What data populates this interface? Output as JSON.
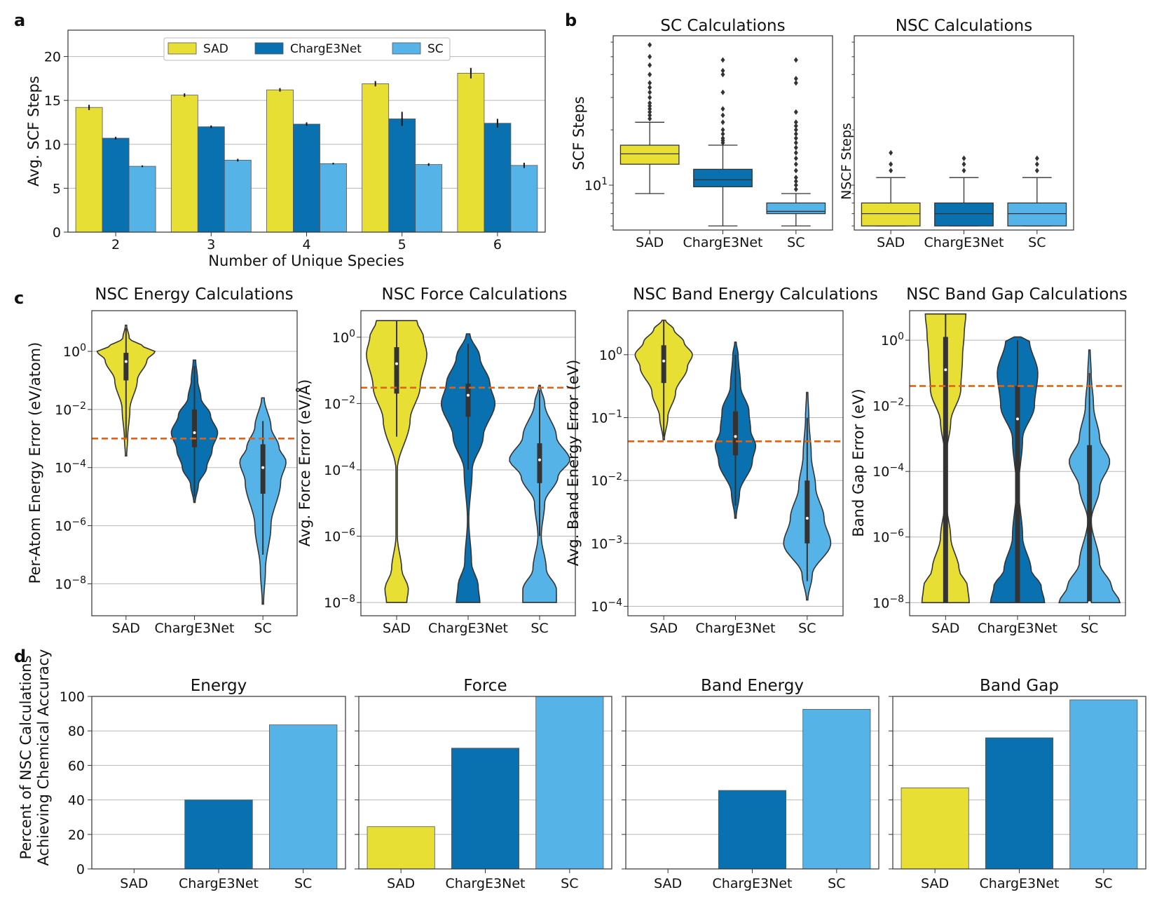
{
  "colors": {
    "SAD": "#e8df35",
    "ChargE3Net": "#0a71b0",
    "SC": "#56b3e8",
    "threshold": "#dd6416",
    "grid": "#b8b8b8"
  },
  "chart_data": [
    {
      "id": "a",
      "panel_label": "a",
      "type": "bar",
      "categories": [
        "2",
        "3",
        "4",
        "5",
        "6"
      ],
      "series": [
        {
          "name": "SAD",
          "values": [
            14.2,
            15.6,
            16.2,
            16.9,
            18.1
          ],
          "errors": [
            0.3,
            0.2,
            0.2,
            0.3,
            0.6
          ]
        },
        {
          "name": "ChargE3Net",
          "values": [
            10.7,
            12.0,
            12.3,
            12.9,
            12.4
          ],
          "errors": [
            0.15,
            0.15,
            0.2,
            0.8,
            0.5
          ]
        },
        {
          "name": "SC",
          "values": [
            7.5,
            8.2,
            7.8,
            7.7,
            7.6
          ],
          "errors": [
            0.1,
            0.15,
            0.1,
            0.15,
            0.3
          ]
        }
      ],
      "title": "",
      "xlabel": "Number of Unique Species",
      "ylabel": "Avg. SCF Steps",
      "ylim": [
        0,
        23
      ],
      "yticks": [
        0,
        5,
        10,
        15,
        20
      ],
      "legend": [
        "SAD",
        "ChargE3Net",
        "SC"
      ],
      "legend_position": "top-center"
    },
    {
      "id": "b1",
      "panel_label": "b",
      "type": "box",
      "yscale": "log",
      "title": "SC Calculations",
      "ylabel": "SCF Steps",
      "categories": [
        "SAD",
        "ChargE3Net",
        "SC"
      ],
      "ylim": [
        5.7,
        65
      ],
      "yticks": [
        10
      ],
      "ytick_labels": [
        "10¹"
      ],
      "boxes": [
        {
          "whislo": 9,
          "q1": 13,
          "med": 14.8,
          "q3": 16.5,
          "whishi": 22,
          "fliers": [
            23,
            24,
            25,
            26,
            27,
            28,
            30,
            32,
            34,
            36,
            40,
            45,
            50,
            58
          ]
        },
        {
          "whislo": 6,
          "q1": 9.8,
          "med": 10.7,
          "q3": 12.2,
          "whishi": 16.5,
          "fliers": [
            17,
            17.5,
            18,
            19,
            20,
            22,
            24,
            26,
            32,
            40,
            42,
            48
          ]
        },
        {
          "whislo": 6,
          "q1": 7,
          "med": 7.2,
          "q3": 8,
          "whishi": 9,
          "fliers": [
            9.5,
            10,
            10.5,
            11,
            12,
            13,
            14,
            15,
            16,
            17,
            18,
            19,
            20,
            21,
            22,
            25,
            36,
            38,
            48
          ]
        }
      ]
    },
    {
      "id": "b2",
      "panel_label": "",
      "type": "box",
      "yscale": "log",
      "title": "NSC Calculations",
      "ylabel": "NSCF Steps",
      "categories": [
        "SAD",
        "ChargE3Net",
        "SC"
      ],
      "ylim": [
        5.7,
        65
      ],
      "yticks": [],
      "ytick_labels": [],
      "boxes": [
        {
          "whislo": 6,
          "q1": 6,
          "med": 7,
          "q3": 8,
          "whishi": 11,
          "fliers": [
            12,
            13,
            15
          ]
        },
        {
          "whislo": 6,
          "q1": 6,
          "med": 7,
          "q3": 8,
          "whishi": 11,
          "fliers": [
            12,
            13,
            14
          ]
        },
        {
          "whislo": 6,
          "q1": 6,
          "med": 7,
          "q3": 8,
          "whishi": 11,
          "fliers": [
            12,
            13,
            14
          ]
        }
      ]
    },
    {
      "id": "c1",
      "panel_label": "c",
      "type": "violin",
      "yscale": "log",
      "title": "NSC Energy Calculations",
      "ylabel": "Per-Atom Energy Error (eV/atom)",
      "categories": [
        "SAD",
        "ChargE3Net",
        "SC"
      ],
      "ylim_exp": [
        -9.1,
        1.4
      ],
      "ytick_exps": [
        -8,
        -6,
        -4,
        -2,
        0
      ],
      "threshold": 0.001,
      "violins": [
        {
          "profile": [
            [
              -3.6,
              0.02
            ],
            [
              -3,
              0.05
            ],
            [
              -2,
              0.12
            ],
            [
              -1,
              0.35
            ],
            [
              -0.3,
              0.65
            ],
            [
              0,
              0.9
            ],
            [
              0.15,
              0.55
            ],
            [
              0.45,
              0.1
            ],
            [
              0.9,
              0.02
            ]
          ],
          "box": [
            -1,
            -0.05
          ],
          "whisker": [
            -3,
            0.8
          ],
          "median": -0.35
        },
        {
          "profile": [
            [
              -5.2,
              0.02
            ],
            [
              -4.6,
              0.12
            ],
            [
              -4,
              0.38
            ],
            [
              -3.4,
              0.55
            ],
            [
              -2.8,
              0.72
            ],
            [
              -2.2,
              0.5
            ],
            [
              -1.6,
              0.2
            ],
            [
              -1,
              0.1
            ],
            [
              -0.3,
              0.04
            ]
          ],
          "box": [
            -3.3,
            -2
          ],
          "whisker": [
            -5,
            -0.5
          ],
          "median": -2.8
        },
        {
          "profile": [
            [
              -8.7,
              0.02
            ],
            [
              -7.5,
              0.08
            ],
            [
              -6,
              0.25
            ],
            [
              -4.5,
              0.55
            ],
            [
              -3.8,
              0.72
            ],
            [
              -3.3,
              0.5
            ],
            [
              -2.6,
              0.25
            ],
            [
              -1.6,
              0.04
            ]
          ],
          "box": [
            -4.9,
            -3.2
          ],
          "whisker": [
            -7,
            -2.4
          ],
          "median": -4
        }
      ]
    },
    {
      "id": "c2",
      "panel_label": "",
      "type": "violin",
      "yscale": "log",
      "title": "NSC Force Calculations",
      "ylabel": "Avg. Force Error (eV/Å)",
      "categories": [
        "SAD",
        "ChargE3Net",
        "SC"
      ],
      "ylim_exp": [
        -8.4,
        0.8
      ],
      "ytick_exps": [
        -8,
        -6,
        -4,
        -2,
        0
      ],
      "threshold": 0.03,
      "violins": [
        {
          "profile": [
            [
              -8,
              0.3
            ],
            [
              -7.6,
              0.35
            ],
            [
              -7,
              0.15
            ],
            [
              -6,
              0.02
            ],
            [
              -4,
              0.02
            ],
            [
              -2.5,
              0.4
            ],
            [
              -1.5,
              0.7
            ],
            [
              -0.5,
              0.9
            ],
            [
              0,
              0.8
            ],
            [
              0.5,
              0.6
            ]
          ],
          "box": [
            -1.7,
            -0.3
          ],
          "whisker": [
            -3,
            0.5
          ],
          "median": -0.8
        },
        {
          "profile": [
            [
              -8,
              0.35
            ],
            [
              -7.5,
              0.3
            ],
            [
              -6.8,
              0.1
            ],
            [
              -5.5,
              0.02
            ],
            [
              -4,
              0.12
            ],
            [
              -3,
              0.45
            ],
            [
              -2,
              0.8
            ],
            [
              -1.4,
              0.65
            ],
            [
              -0.6,
              0.35
            ],
            [
              0.1,
              0.05
            ]
          ],
          "box": [
            -2.4,
            -1.4
          ],
          "whisker": [
            -4,
            -0.2
          ],
          "median": -1.75
        },
        {
          "profile": [
            [
              -8,
              0.5
            ],
            [
              -7.6,
              0.5
            ],
            [
              -7,
              0.2
            ],
            [
              -6,
              0.05
            ],
            [
              -5,
              0.15
            ],
            [
              -4.2,
              0.55
            ],
            [
              -3.7,
              0.9
            ],
            [
              -3,
              0.5
            ],
            [
              -2,
              0.15
            ],
            [
              -1.45,
              0.02
            ]
          ],
          "box": [
            -4.4,
            -3.2
          ],
          "whisker": [
            -6,
            -1.6
          ],
          "median": -3.7
        }
      ]
    },
    {
      "id": "c3",
      "panel_label": "",
      "type": "violin",
      "yscale": "log",
      "title": "NSC Band Energy Calculations",
      "ylabel": "Avg. Band Energy Error (eV)",
      "categories": [
        "SAD",
        "ChargE3Net",
        "SC"
      ],
      "ylim_exp": [
        -4.15,
        0.7
      ],
      "ytick_exps": [
        -4,
        -3,
        -2,
        -1,
        0
      ],
      "threshold": 0.042,
      "violins": [
        {
          "profile": [
            [
              -1.35,
              0.02
            ],
            [
              -1,
              0.12
            ],
            [
              -0.6,
              0.35
            ],
            [
              -0.2,
              0.7
            ],
            [
              0,
              0.85
            ],
            [
              0.2,
              0.6
            ],
            [
              0.4,
              0.3
            ],
            [
              0.55,
              0.05
            ]
          ],
          "box": [
            -0.45,
            0.15
          ],
          "whisker": [
            -1.3,
            0.55
          ],
          "median": -0.1
        },
        {
          "profile": [
            [
              -2.6,
              0.02
            ],
            [
              -2.2,
              0.12
            ],
            [
              -1.7,
              0.5
            ],
            [
              -1.45,
              0.6
            ],
            [
              -1.2,
              0.45
            ],
            [
              -0.9,
              0.4
            ],
            [
              -0.5,
              0.15
            ],
            [
              0,
              0.08
            ],
            [
              0.2,
              0.02
            ]
          ],
          "box": [
            -1.6,
            -0.9
          ],
          "whisker": [
            -2.4,
            0
          ],
          "median": -1.3
        },
        {
          "profile": [
            [
              -3.9,
              0.02
            ],
            [
              -3.5,
              0.15
            ],
            [
              -3,
              0.7
            ],
            [
              -2.6,
              0.5
            ],
            [
              -2.1,
              0.25
            ],
            [
              -1.6,
              0.12
            ],
            [
              -1,
              0.05
            ],
            [
              -0.6,
              0.02
            ]
          ],
          "box": [
            -3,
            -2
          ],
          "whisker": [
            -3.6,
            -1
          ],
          "median": -2.6
        }
      ]
    },
    {
      "id": "c4",
      "panel_label": "",
      "type": "violin",
      "yscale": "log",
      "title": "NSC Band Gap Calculations",
      "ylabel": "Band Gap Error (eV)",
      "categories": [
        "SAD",
        "ChargE3Net",
        "SC"
      ],
      "ylim_exp": [
        -8.4,
        0.9
      ],
      "ytick_exps": [
        -8,
        -6,
        -4,
        -2,
        0
      ],
      "threshold": 0.04,
      "violins": [
        {
          "profile": [
            [
              -8,
              0.7
            ],
            [
              -7.5,
              0.65
            ],
            [
              -7,
              0.4
            ],
            [
              -6,
              0.15
            ],
            [
              -5,
              0.03
            ],
            [
              -3.5,
              0.02
            ],
            [
              -2.5,
              0.15
            ],
            [
              -1.5,
              0.45
            ],
            [
              -0.5,
              0.5
            ],
            [
              0.2,
              0.55
            ],
            [
              0.8,
              0.6
            ]
          ],
          "box": [
            -8,
            0.1
          ],
          "whisker": [
            -8,
            0.8
          ],
          "median": -0.9
        },
        {
          "profile": [
            [
              -8,
              0.8
            ],
            [
              -7.5,
              0.7
            ],
            [
              -7,
              0.4
            ],
            [
              -6,
              0.15
            ],
            [
              -4.5,
              0.03
            ],
            [
              -3,
              0.15
            ],
            [
              -2,
              0.5
            ],
            [
              -1,
              0.6
            ],
            [
              0,
              0.35
            ],
            [
              0.1,
              0.1
            ]
          ],
          "box": [
            -8,
            -1.4
          ],
          "whisker": [
            -8,
            0
          ],
          "median": -2.4
        },
        {
          "profile": [
            [
              -8,
              0.9
            ],
            [
              -7.5,
              0.65
            ],
            [
              -6.8,
              0.3
            ],
            [
              -5.5,
              0.05
            ],
            [
              -4.5,
              0.3
            ],
            [
              -3.7,
              0.6
            ],
            [
              -3,
              0.3
            ],
            [
              -2,
              0.12
            ],
            [
              -1,
              0.05
            ],
            [
              -0.3,
              0.02
            ]
          ],
          "box": [
            -8,
            -3.2
          ],
          "whisker": [
            -8,
            -1
          ],
          "median": -8
        }
      ]
    },
    {
      "id": "d1",
      "panel_label": "d",
      "type": "bar",
      "title": "Energy",
      "ylabel_lines": [
        "Percent of NSC Calculations",
        "Achieving Chemical Accuracy"
      ],
      "categories": [
        "SAD",
        "ChargE3Net",
        "SC"
      ],
      "values": [
        0,
        40,
        83.5
      ],
      "ylim": [
        0,
        100
      ],
      "yticks": [
        0,
        20,
        40,
        60,
        80,
        100
      ]
    },
    {
      "id": "d2",
      "panel_label": "",
      "type": "bar",
      "title": "Force",
      "categories": [
        "SAD",
        "ChargE3Net",
        "SC"
      ],
      "values": [
        24.5,
        70,
        100
      ],
      "ylim": [
        0,
        100
      ],
      "yticks": []
    },
    {
      "id": "d3",
      "panel_label": "",
      "type": "bar",
      "title": "Band Energy",
      "categories": [
        "SAD",
        "ChargE3Net",
        "SC"
      ],
      "values": [
        0,
        45.5,
        92.5
      ],
      "ylim": [
        0,
        100
      ],
      "yticks": []
    },
    {
      "id": "d4",
      "panel_label": "",
      "type": "bar",
      "title": "Band Gap",
      "categories": [
        "SAD",
        "ChargE3Net",
        "SC"
      ],
      "values": [
        47,
        76,
        98
      ],
      "ylim": [
        0,
        100
      ],
      "yticks": []
    }
  ]
}
